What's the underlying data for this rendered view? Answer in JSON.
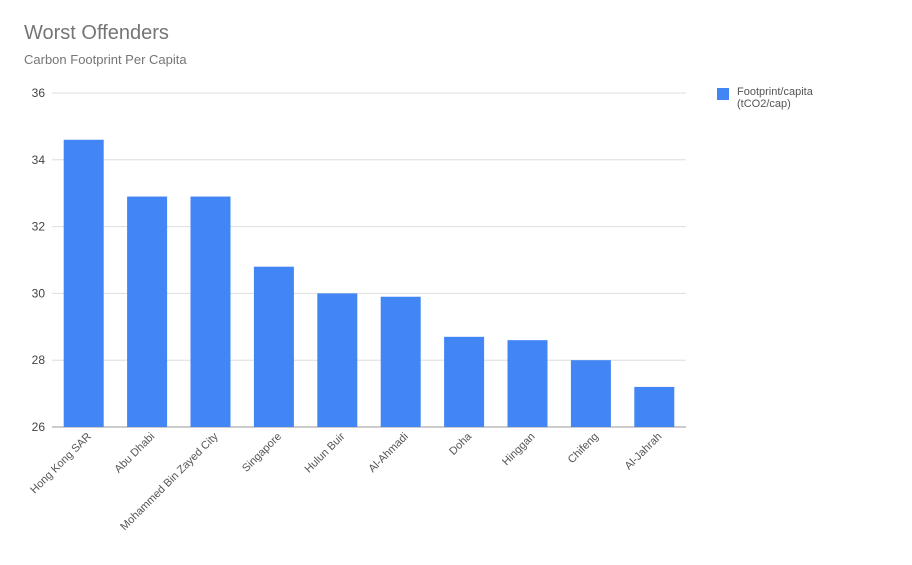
{
  "chart_data": {
    "type": "bar",
    "title": "Worst Offenders",
    "subtitle": "Carbon Footprint Per Capita",
    "xlabel": "",
    "ylabel": "",
    "categories": [
      "Hong Kong SAR",
      "Abu Dhabi",
      "Mohammed Bin Zayed City",
      "Singapore",
      "Hulun Buir",
      "Al-Ahmadi",
      "Doha",
      "Hinggan",
      "Chifeng",
      "Al-Jahrah"
    ],
    "series": [
      {
        "name": "Footprint/capita (tCO2/cap)",
        "values": [
          34.6,
          32.9,
          32.9,
          30.8,
          30.0,
          29.9,
          28.7,
          28.6,
          28.0,
          27.2
        ],
        "color": "#4285f4"
      }
    ],
    "ylim": [
      26,
      36
    ],
    "yticks": [
      26,
      28,
      30,
      32,
      34,
      36
    ],
    "grid": true,
    "legend_position": "right"
  }
}
